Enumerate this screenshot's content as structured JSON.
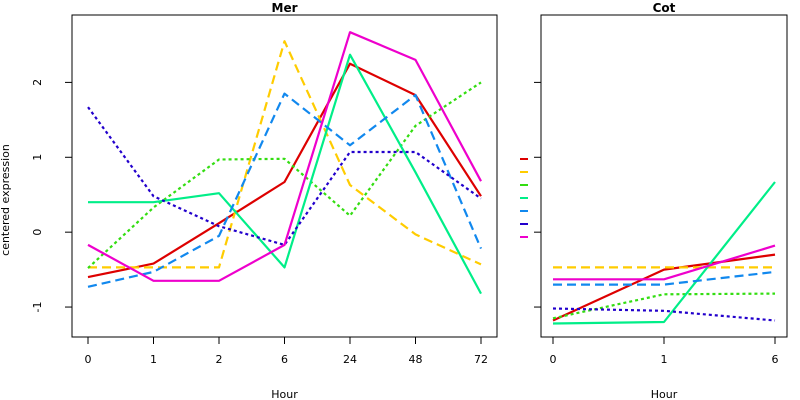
{
  "chart_data": [
    {
      "type": "line",
      "title": "Mer",
      "xlabel": "Hour",
      "ylabel": "centered expression",
      "categories": [
        "0",
        "1",
        "2",
        "6",
        "24",
        "48",
        "72"
      ],
      "ylim": [
        -1.4,
        2.9
      ],
      "yticks": [
        -1,
        0,
        1,
        2
      ],
      "series": [
        {
          "color": "#dd0000",
          "dash": "solid",
          "values": [
            -0.6,
            -0.42,
            0.12,
            0.67,
            2.25,
            1.83,
            0.48
          ]
        },
        {
          "color": "#ffcc00",
          "dash": "dashed",
          "values": [
            -0.47,
            -0.47,
            -0.47,
            2.55,
            0.63,
            -0.03,
            -0.43
          ]
        },
        {
          "color": "#33dd11",
          "dash": "dotted",
          "values": [
            -0.48,
            0.33,
            0.97,
            0.98,
            0.22,
            1.42,
            2.0
          ]
        },
        {
          "color": "#00ee88",
          "dash": "solid",
          "values": [
            0.4,
            0.4,
            0.52,
            -0.47,
            2.37,
            0.8,
            -0.82
          ]
        },
        {
          "color": "#1188ee",
          "dash": "dashed",
          "values": [
            -0.73,
            -0.53,
            -0.05,
            1.85,
            1.16,
            1.83,
            -0.22
          ]
        },
        {
          "color": "#2200cc",
          "dash": "dotted",
          "values": [
            1.67,
            0.48,
            0.08,
            -0.17,
            1.07,
            1.07,
            0.45
          ]
        },
        {
          "color": "#ee00cc",
          "dash": "solid",
          "values": [
            -0.17,
            -0.65,
            -0.65,
            -0.17,
            2.67,
            2.3,
            0.68
          ]
        }
      ]
    },
    {
      "type": "line",
      "title": "Cot",
      "xlabel": "Hour",
      "ylabel": "",
      "categories": [
        "0",
        "1",
        "6"
      ],
      "ylim": [
        -1.4,
        2.9
      ],
      "yticks": [
        -1,
        0,
        1,
        2
      ],
      "series": [
        {
          "color": "#dd0000",
          "dash": "solid",
          "values": [
            -1.18,
            -0.5,
            -0.3
          ]
        },
        {
          "color": "#ffcc00",
          "dash": "dashed",
          "values": [
            -0.47,
            -0.47,
            -0.47
          ]
        },
        {
          "color": "#33dd11",
          "dash": "dotted",
          "values": [
            -1.15,
            -0.83,
            -0.82
          ]
        },
        {
          "color": "#00ee88",
          "dash": "solid",
          "values": [
            -1.22,
            -1.2,
            0.67
          ]
        },
        {
          "color": "#1188ee",
          "dash": "dashed",
          "values": [
            -0.7,
            -0.7,
            -0.53
          ]
        },
        {
          "color": "#2200cc",
          "dash": "dotted",
          "values": [
            -1.02,
            -1.05,
            -1.18
          ]
        },
        {
          "color": "#ee00cc",
          "dash": "solid",
          "values": [
            -0.63,
            -0.63,
            -0.18
          ]
        }
      ]
    }
  ]
}
